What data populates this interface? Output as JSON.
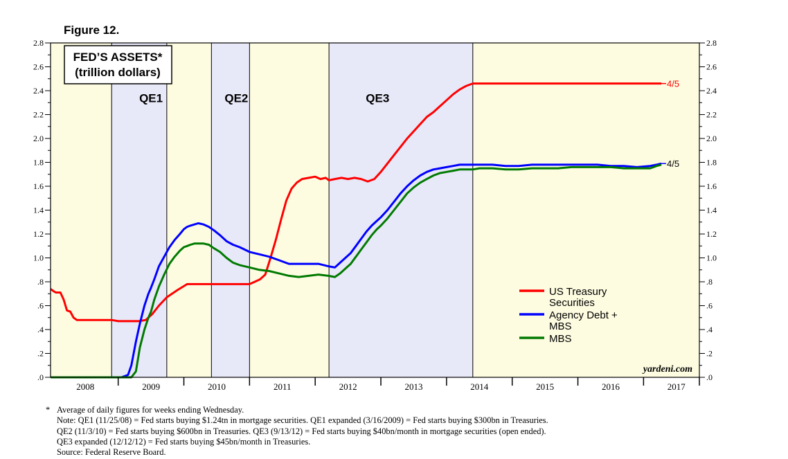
{
  "figure_label": "Figure 12.",
  "chart_data": {
    "type": "line",
    "title": "FED’S ASSETS*",
    "subtitle": "(trillion dollars)",
    "watermark": "yardeni.com",
    "x_tick_labels": [
      "2008",
      "2009",
      "2010",
      "2011",
      "2012",
      "2013",
      "2014",
      "2015",
      "2016",
      "2017"
    ],
    "y_tick_labels": [
      ".0",
      ".2",
      ".4",
      ".6",
      ".8",
      "1.0",
      "1.2",
      "1.4",
      "1.6",
      "1.8",
      "2.0",
      "2.2",
      "2.4",
      "2.6",
      "2.8"
    ],
    "xlim": [
      2007.97,
      2017.85
    ],
    "ylim": [
      0,
      2.8
    ],
    "grid": false,
    "legend_position": "right",
    "background_bands": [
      {
        "from": 2007.97,
        "to": 2008.9,
        "color": "#fdfce1"
      },
      {
        "from": 2008.9,
        "to": 2009.74,
        "color": "#e7e8f8"
      },
      {
        "from": 2009.74,
        "to": 2010.42,
        "color": "#fdfce1"
      },
      {
        "from": 2010.42,
        "to": 2011.0,
        "color": "#e7e8f8"
      },
      {
        "from": 2011.0,
        "to": 2012.21,
        "color": "#fdfce1"
      },
      {
        "from": 2012.21,
        "to": 2014.4,
        "color": "#e7e8f8"
      },
      {
        "from": 2014.4,
        "to": 2017.85,
        "color": "#fdfce1"
      }
    ],
    "period_labels": [
      {
        "text": "QE1",
        "x": 2009.5,
        "y": 2.35
      },
      {
        "text": "QE2",
        "x": 2010.8,
        "y": 2.35
      },
      {
        "text": "QE3",
        "x": 2012.95,
        "y": 2.35
      }
    ],
    "series": [
      {
        "name": "US Treasury Securities",
        "color": "#ff0000",
        "end_label": "4/5",
        "x": [
          2007.97,
          2008.02,
          2008.05,
          2008.12,
          2008.17,
          2008.22,
          2008.27,
          2008.32,
          2008.37,
          2008.42,
          2008.5,
          2008.6,
          2008.7,
          2008.8,
          2008.9,
          2009.0,
          2009.12,
          2009.22,
          2009.32,
          2009.42,
          2009.52,
          2009.62,
          2009.74,
          2009.9,
          2010.05,
          2010.2,
          2010.3,
          2010.38,
          2010.42,
          2010.5,
          2010.58,
          2010.66,
          2010.74,
          2010.82,
          2010.9,
          2011.0,
          2011.08,
          2011.16,
          2011.24,
          2011.32,
          2011.4,
          2011.48,
          2011.56,
          2011.64,
          2011.72,
          2011.8,
          2011.9,
          2012.0,
          2012.08,
          2012.16,
          2012.21,
          2012.3,
          2012.4,
          2012.5,
          2012.6,
          2012.7,
          2012.8,
          2012.9,
          2013.0,
          2013.1,
          2013.2,
          2013.3,
          2013.4,
          2013.5,
          2013.6,
          2013.7,
          2013.8,
          2013.9,
          2014.0,
          2014.1,
          2014.2,
          2014.3,
          2014.4,
          2014.6,
          2015.0,
          2015.5,
          2016.0,
          2016.5,
          2017.0,
          2017.27
        ],
        "values": [
          0.74,
          0.72,
          0.71,
          0.71,
          0.65,
          0.56,
          0.55,
          0.5,
          0.48,
          0.48,
          0.48,
          0.48,
          0.48,
          0.48,
          0.48,
          0.47,
          0.47,
          0.47,
          0.47,
          0.48,
          0.53,
          0.6,
          0.67,
          0.73,
          0.78,
          0.78,
          0.78,
          0.78,
          0.78,
          0.78,
          0.78,
          0.78,
          0.78,
          0.78,
          0.78,
          0.78,
          0.8,
          0.82,
          0.86,
          1.0,
          1.15,
          1.32,
          1.48,
          1.58,
          1.63,
          1.66,
          1.67,
          1.68,
          1.66,
          1.67,
          1.65,
          1.66,
          1.67,
          1.66,
          1.67,
          1.66,
          1.64,
          1.66,
          1.72,
          1.79,
          1.86,
          1.93,
          2.0,
          2.06,
          2.12,
          2.18,
          2.22,
          2.27,
          2.32,
          2.37,
          2.41,
          2.44,
          2.46,
          2.46,
          2.46,
          2.46,
          2.46,
          2.46,
          2.46,
          2.46
        ]
      },
      {
        "name": "Agency Debt + MBS",
        "color": "#0000ff",
        "end_label": "4/5",
        "x": [
          2007.97,
          2008.5,
          2008.9,
          2009.05,
          2009.15,
          2009.2,
          2009.27,
          2009.33,
          2009.4,
          2009.46,
          2009.5,
          2009.55,
          2009.62,
          2009.7,
          2009.78,
          2009.86,
          2009.94,
          2010.0,
          2010.05,
          2010.1,
          2010.16,
          2010.22,
          2010.3,
          2010.38,
          2010.46,
          2010.55,
          2010.65,
          2010.75,
          2010.85,
          2011.0,
          2011.15,
          2011.3,
          2011.45,
          2011.6,
          2011.75,
          2011.9,
          2012.05,
          2012.2,
          2012.3,
          2012.38,
          2012.46,
          2012.54,
          2012.62,
          2012.7,
          2012.78,
          2012.86,
          2012.94,
          2013.0,
          2013.1,
          2013.2,
          2013.3,
          2013.4,
          2013.5,
          2013.6,
          2013.7,
          2013.8,
          2013.9,
          2014.0,
          2014.1,
          2014.2,
          2014.3,
          2014.4,
          2014.5,
          2014.7,
          2014.9,
          2015.1,
          2015.3,
          2015.5,
          2015.7,
          2015.9,
          2016.1,
          2016.3,
          2016.5,
          2016.7,
          2016.9,
          2017.1,
          2017.2,
          2017.27
        ],
        "values": [
          0.0,
          0.0,
          0.0,
          0.0,
          0.02,
          0.1,
          0.3,
          0.45,
          0.6,
          0.7,
          0.75,
          0.82,
          0.93,
          1.01,
          1.09,
          1.15,
          1.2,
          1.24,
          1.26,
          1.27,
          1.28,
          1.29,
          1.28,
          1.26,
          1.23,
          1.19,
          1.14,
          1.11,
          1.09,
          1.05,
          1.03,
          1.01,
          0.98,
          0.95,
          0.95,
          0.95,
          0.95,
          0.93,
          0.92,
          0.96,
          1.0,
          1.04,
          1.1,
          1.16,
          1.22,
          1.27,
          1.31,
          1.34,
          1.4,
          1.47,
          1.54,
          1.6,
          1.65,
          1.69,
          1.72,
          1.74,
          1.75,
          1.76,
          1.77,
          1.78,
          1.78,
          1.78,
          1.78,
          1.78,
          1.77,
          1.77,
          1.78,
          1.78,
          1.78,
          1.78,
          1.78,
          1.78,
          1.77,
          1.77,
          1.76,
          1.77,
          1.78,
          1.79
        ]
      },
      {
        "name": "MBS",
        "color": "#007a00",
        "x": [
          2007.97,
          2008.5,
          2008.9,
          2009.05,
          2009.15,
          2009.2,
          2009.27,
          2009.33,
          2009.4,
          2009.46,
          2009.5,
          2009.55,
          2009.62,
          2009.7,
          2009.78,
          2009.86,
          2009.94,
          2010.0,
          2010.05,
          2010.1,
          2010.16,
          2010.22,
          2010.3,
          2010.38,
          2010.46,
          2010.55,
          2010.65,
          2010.75,
          2010.85,
          2011.0,
          2011.15,
          2011.3,
          2011.45,
          2011.6,
          2011.75,
          2011.9,
          2012.05,
          2012.2,
          2012.3,
          2012.38,
          2012.46,
          2012.54,
          2012.62,
          2012.7,
          2012.78,
          2012.86,
          2012.94,
          2013.0,
          2013.1,
          2013.2,
          2013.3,
          2013.4,
          2013.5,
          2013.6,
          2013.7,
          2013.8,
          2013.9,
          2014.0,
          2014.1,
          2014.2,
          2014.3,
          2014.4,
          2014.5,
          2014.7,
          2014.9,
          2015.1,
          2015.3,
          2015.5,
          2015.7,
          2015.9,
          2016.1,
          2016.3,
          2016.5,
          2016.7,
          2016.9,
          2017.1,
          2017.2,
          2017.27
        ],
        "values": [
          0.0,
          0.0,
          0.0,
          0.0,
          0.0,
          0.0,
          0.05,
          0.25,
          0.4,
          0.5,
          0.55,
          0.65,
          0.76,
          0.86,
          0.95,
          1.01,
          1.06,
          1.09,
          1.1,
          1.11,
          1.12,
          1.12,
          1.12,
          1.11,
          1.08,
          1.05,
          1.0,
          0.96,
          0.94,
          0.92,
          0.9,
          0.89,
          0.87,
          0.85,
          0.84,
          0.85,
          0.86,
          0.85,
          0.84,
          0.87,
          0.91,
          0.95,
          1.01,
          1.07,
          1.13,
          1.19,
          1.24,
          1.27,
          1.33,
          1.4,
          1.47,
          1.54,
          1.59,
          1.63,
          1.66,
          1.69,
          1.71,
          1.72,
          1.73,
          1.74,
          1.74,
          1.74,
          1.75,
          1.75,
          1.74,
          1.74,
          1.75,
          1.75,
          1.75,
          1.76,
          1.76,
          1.76,
          1.76,
          1.75,
          1.75,
          1.75,
          1.77,
          1.78
        ]
      }
    ],
    "legend": [
      {
        "lines": [
          "US Treasury",
          "Securities"
        ],
        "color": "#ff0000"
      },
      {
        "lines": [
          "Agency Debt +",
          "MBS"
        ],
        "color": "#0000ff"
      },
      {
        "lines": [
          "MBS"
        ],
        "color": "#007a00"
      }
    ]
  },
  "notes": {
    "footnote_marker": "*",
    "footnote": "Average of daily figures for weeks ending Wednesday.",
    "note_1": "Note: QE1 (11/25/08) = Fed starts buying $1.24tn in mortgage securities. QE1 expanded (3/16/2009) = Fed starts buying $300bn in Treasuries.",
    "note_2": "QE2 (11/3/10) = Fed starts buying $600bn in Treasuries. QE3 (9/13/12) = Fed starts buying $40bn/month in mortgage securities (open ended).",
    "note_3": "QE3 expanded (12/12/12) = Fed starts buying $45bn/month in Treasuries.",
    "source": "Source: Federal Reserve Board."
  }
}
